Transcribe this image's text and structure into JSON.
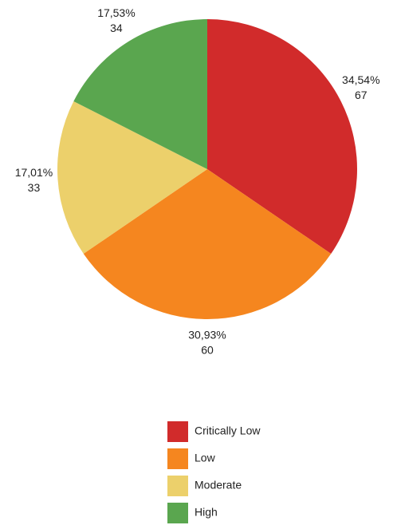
{
  "chart_data": {
    "type": "pie",
    "categories": [
      "Critically Low",
      "Low",
      "Moderate",
      "High"
    ],
    "values": [
      34.54,
      30.93,
      17.01,
      17.53
    ],
    "value_labels": [
      "34,54%",
      "30,93%",
      "17,01%",
      "17,53%"
    ],
    "counts": [
      67,
      60,
      33,
      34
    ],
    "colors": [
      "#d12b2b",
      "#f5861f",
      "#ecd06b",
      "#5aa64f"
    ]
  }
}
